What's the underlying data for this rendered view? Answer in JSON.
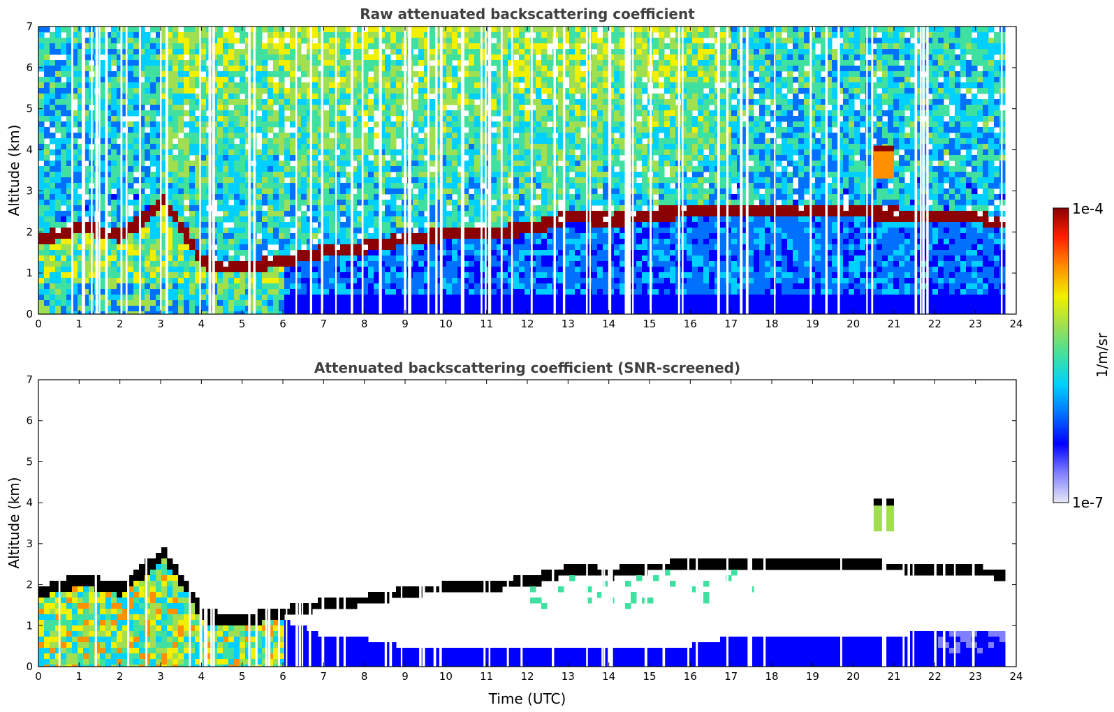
{
  "chart_data": [
    {
      "type": "heatmap",
      "title": "Raw attenuated backscattering coefficient",
      "xlabel": "",
      "ylabel": "Altitude (km)",
      "xlim": [
        0,
        24
      ],
      "ylim": [
        0,
        7
      ],
      "xticks": [
        "0",
        "1",
        "2",
        "3",
        "4",
        "5",
        "6",
        "7",
        "8",
        "9",
        "10",
        "11",
        "12",
        "13",
        "14",
        "15",
        "16",
        "17",
        "18",
        "19",
        "20",
        "21",
        "22",
        "23",
        "24"
      ],
      "yticks": [
        "0",
        "1",
        "2",
        "3",
        "4",
        "5",
        "6",
        "7"
      ],
      "data_end_hour": 23.7,
      "layer_top_km": [
        [
          0,
          1.9
        ],
        [
          1,
          2.2
        ],
        [
          2,
          1.95
        ],
        [
          3,
          2.85
        ],
        [
          4,
          1.3
        ],
        [
          5,
          1.2
        ],
        [
          6,
          1.4
        ],
        [
          7,
          1.6
        ],
        [
          8,
          1.7
        ],
        [
          9,
          1.9
        ],
        [
          10,
          2.0
        ],
        [
          11,
          2.05
        ],
        [
          12,
          2.15
        ],
        [
          13,
          2.45
        ],
        [
          14,
          2.35
        ],
        [
          15,
          2.5
        ],
        [
          16,
          2.55
        ],
        [
          17,
          2.6
        ],
        [
          18,
          2.6
        ],
        [
          19,
          2.55
        ],
        [
          20,
          2.55
        ],
        [
          21,
          2.5
        ],
        [
          22,
          2.45
        ],
        [
          23,
          2.4
        ],
        [
          23.7,
          2.3
        ]
      ],
      "elevated_cloud": {
        "x_start": 20.5,
        "x_end": 21.0,
        "y_bottom_km": 3.3,
        "y_top_km": 4.1
      }
    },
    {
      "type": "heatmap",
      "title": "Attenuated backscattering coefficient (SNR-screened)",
      "xlabel": "Time (UTC)",
      "ylabel": "Altitude (km)",
      "xlim": [
        0,
        24
      ],
      "ylim": [
        0,
        7
      ],
      "xticks": [
        "0",
        "1",
        "2",
        "3",
        "4",
        "5",
        "6",
        "7",
        "8",
        "9",
        "10",
        "11",
        "12",
        "13",
        "14",
        "15",
        "16",
        "17",
        "18",
        "19",
        "20",
        "21",
        "22",
        "23",
        "24"
      ],
      "yticks": [
        "0",
        "1",
        "2",
        "3",
        "4",
        "5",
        "6",
        "7"
      ],
      "data_end_hour": 23.7,
      "screened_boundary_km": [
        [
          6,
          1.2
        ],
        [
          7,
          0.8
        ],
        [
          8,
          0.75
        ],
        [
          9,
          0.55
        ],
        [
          10,
          0.5
        ],
        [
          11,
          0.55
        ],
        [
          12,
          0.5
        ],
        [
          13,
          0.5
        ],
        [
          14,
          0.55
        ],
        [
          15,
          0.5
        ],
        [
          16,
          0.6
        ],
        [
          17,
          0.8
        ],
        [
          18,
          0.8
        ],
        [
          19,
          0.85
        ],
        [
          20,
          0.85
        ],
        [
          21,
          0.85
        ],
        [
          22,
          0.9
        ],
        [
          23,
          0.9
        ],
        [
          23.7,
          0.9
        ]
      ]
    }
  ],
  "colorbar": {
    "label": "1/m/sr",
    "max_label": "1e-4",
    "min_label": "1e-7",
    "colormap": "jet",
    "colors": [
      "#e8e8f8",
      "#8080ff",
      "#0000ff",
      "#0070ff",
      "#00d0ff",
      "#40e0a0",
      "#a0e050",
      "#f0f000",
      "#ff9000",
      "#ff2000",
      "#8b0000"
    ]
  }
}
